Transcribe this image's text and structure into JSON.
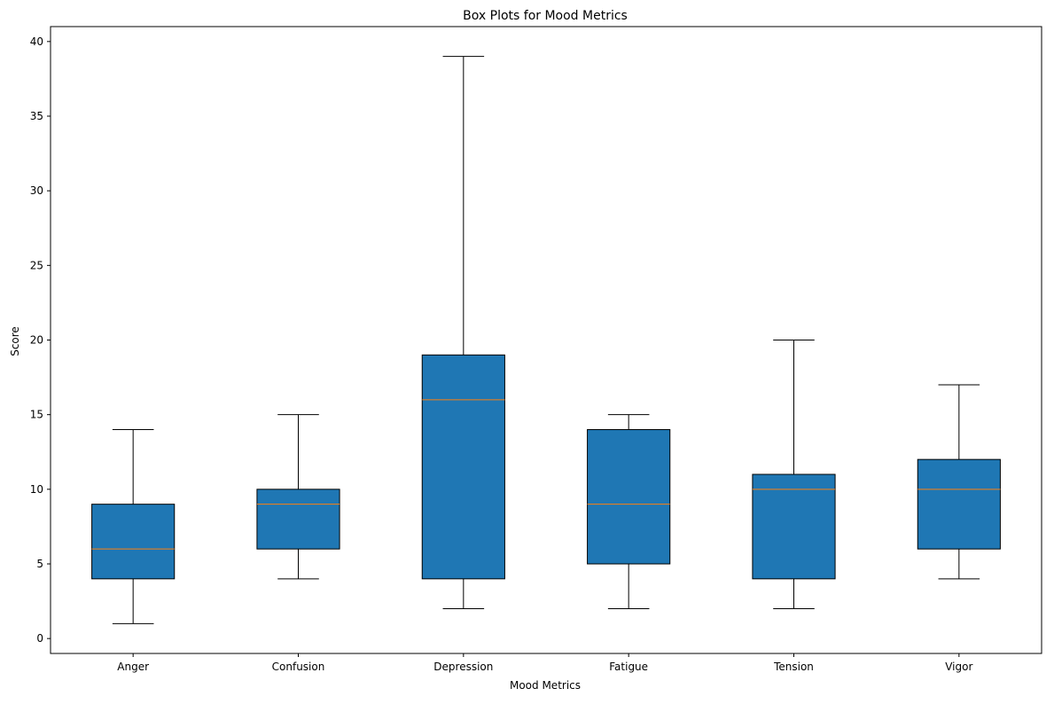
{
  "chart_data": {
    "type": "boxplot",
    "title": "Box Plots for Mood Metrics",
    "xlabel": "Mood Metrics",
    "ylabel": "Score",
    "ylim": [
      -1,
      41
    ],
    "yticks": [
      0,
      5,
      10,
      15,
      20,
      25,
      30,
      35,
      40
    ],
    "categories": [
      "Anger",
      "Confusion",
      "Depression",
      "Fatigue",
      "Tension",
      "Vigor"
    ],
    "boxes": [
      {
        "category": "Anger",
        "whisker_low": 1,
        "q1": 4,
        "median": 6,
        "q3": 9,
        "whisker_high": 14
      },
      {
        "category": "Confusion",
        "whisker_low": 4,
        "q1": 6,
        "median": 9,
        "q3": 10,
        "whisker_high": 15
      },
      {
        "category": "Depression",
        "whisker_low": 2,
        "q1": 4,
        "median": 16,
        "q3": 19,
        "whisker_high": 39
      },
      {
        "category": "Fatigue",
        "whisker_low": 2,
        "q1": 5,
        "median": 9,
        "q3": 14,
        "whisker_high": 15
      },
      {
        "category": "Tension",
        "whisker_low": 2,
        "q1": 4,
        "median": 10,
        "q3": 11,
        "whisker_high": 20
      },
      {
        "category": "Vigor",
        "whisker_low": 4,
        "q1": 6,
        "median": 10,
        "q3": 12,
        "whisker_high": 17
      }
    ],
    "grid": false,
    "colors": {
      "box_fill": "#1f77b4",
      "median": "#ff7f0e",
      "line": "#000000"
    }
  }
}
